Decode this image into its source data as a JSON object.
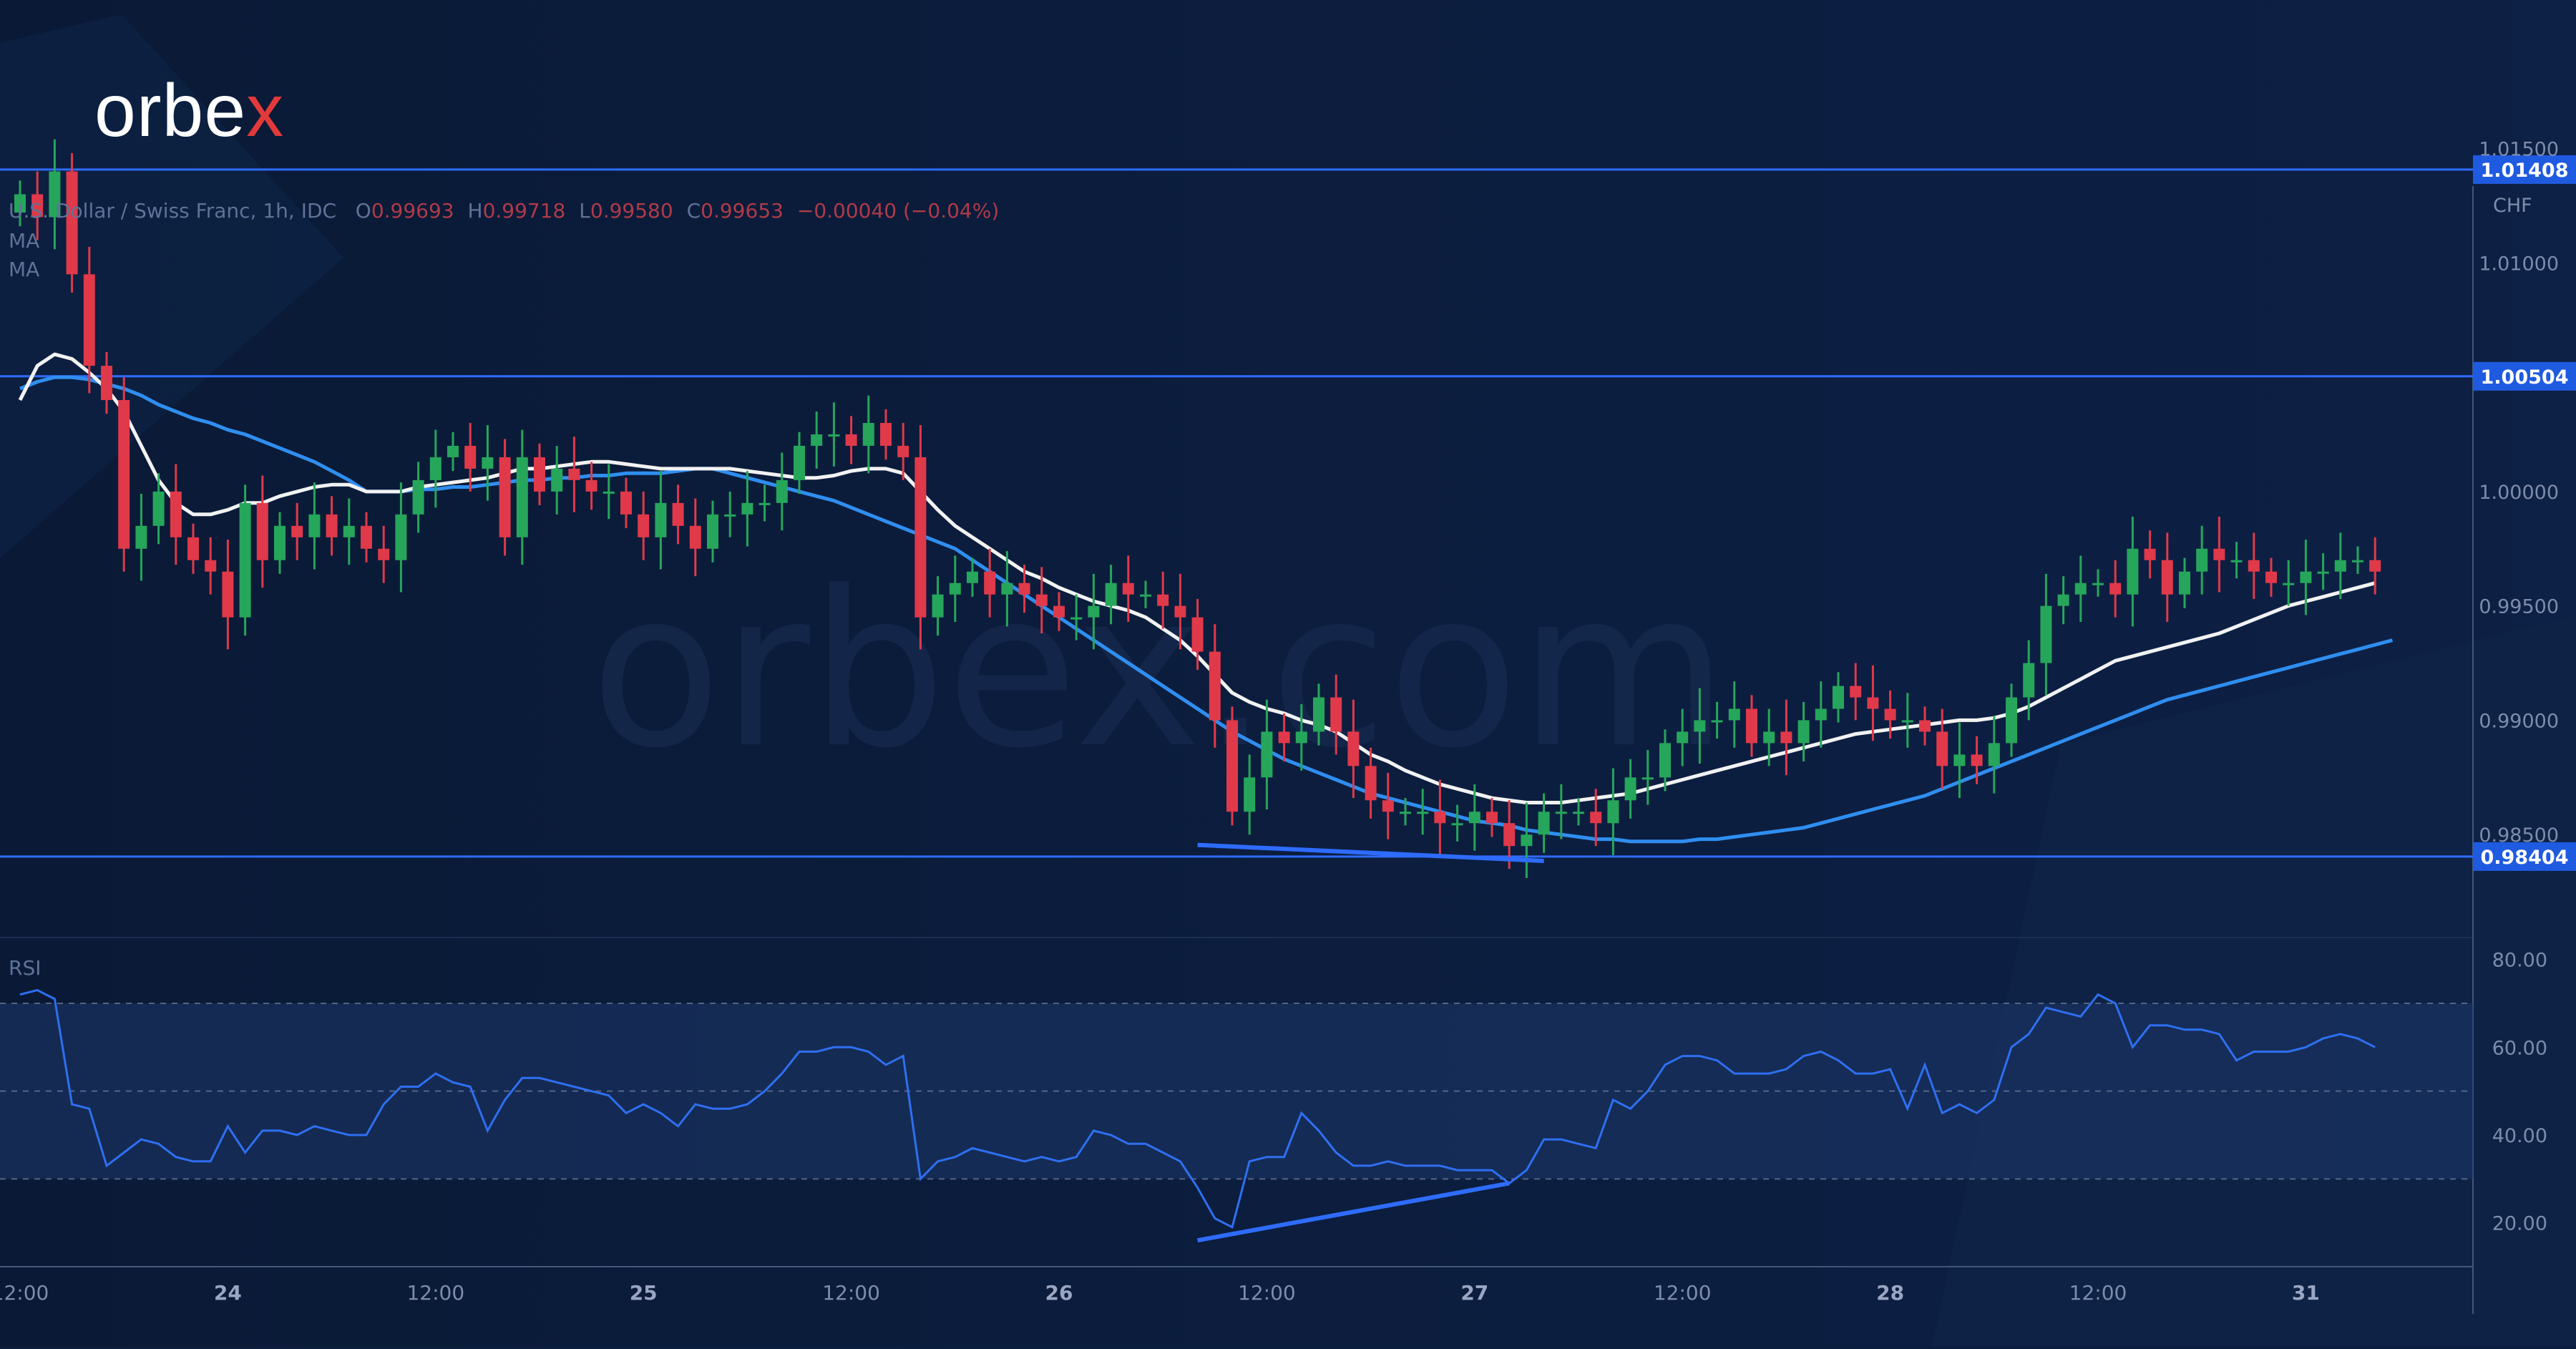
{
  "brand": {
    "logo_text": "orbe",
    "logo_x": "x",
    "watermark": "orbex.com"
  },
  "header": {
    "symbol": "U.S. Dollar / Swiss Franc, 1h, IDC",
    "open_label": "O",
    "open": "0.99693",
    "high_label": "H",
    "high": "0.99718",
    "low_label": "L",
    "low": "0.99580",
    "close_label": "C",
    "close": "0.99653",
    "change": "−0.00040 (−0.04%)",
    "ma1_label": "MA",
    "ma2_label": "MA",
    "rsi_label": "RSI"
  },
  "colors": {
    "background": "#0c1e3d",
    "up": "#26a65b",
    "down": "#e0394a",
    "level_line": "#2e6cff",
    "ma_fast": "#f2f2f2",
    "ma_slow": "#2f8ef0",
    "rsi_line": "#2f6ff0",
    "rsi_band": "#1b3566",
    "axis_text": "#7e8cab"
  },
  "chart_data": [
    {
      "type": "candlestick",
      "pane": "price",
      "currency_label": "CHF",
      "ylim": [
        0.9805,
        1.0168
      ],
      "y_ticks": [
        "1.01500",
        "1.01000",
        "1.00000",
        "0.99500",
        "0.99000",
        "0.98500"
      ],
      "horizontal_levels": [
        {
          "value": 1.01408,
          "label": "1.01408"
        },
        {
          "value": 1.00504,
          "label": "1.00504"
        },
        {
          "value": 0.98404,
          "label": "0.98404"
        }
      ],
      "x_labels": [
        {
          "bar": 0,
          "label": "12:00"
        },
        {
          "bar": 12,
          "label": "24"
        },
        {
          "bar": 24,
          "label": "12:00"
        },
        {
          "bar": 36,
          "label": "25"
        },
        {
          "bar": 48,
          "label": "12:00"
        },
        {
          "bar": 60,
          "label": "26"
        },
        {
          "bar": 72,
          "label": "12:00"
        },
        {
          "bar": 84,
          "label": "27"
        },
        {
          "bar": 96,
          "label": "12:00"
        },
        {
          "bar": 108,
          "label": "28"
        },
        {
          "bar": 120,
          "label": "12:00"
        },
        {
          "bar": 132,
          "label": "31"
        }
      ],
      "closes": [
        1.013,
        1.012,
        1.014,
        1.0095,
        1.0055,
        1.004,
        0.9975,
        0.9985,
        1.0,
        0.998,
        0.997,
        0.9965,
        0.9945,
        0.9995,
        0.997,
        0.9985,
        0.998,
        0.999,
        0.998,
        0.9985,
        0.9975,
        0.997,
        0.999,
        1.0005,
        1.0015,
        1.002,
        1.001,
        1.0015,
        0.998,
        1.0015,
        1.0,
        1.001,
        1.0005,
        1.0,
        1.0,
        0.999,
        0.998,
        0.9995,
        0.9985,
        0.9975,
        0.999,
        0.999,
        0.9995,
        0.9995,
        1.0005,
        1.002,
        1.0025,
        1.0025,
        1.002,
        1.003,
        1.002,
        1.0015,
        0.9945,
        0.9955,
        0.996,
        0.9965,
        0.9955,
        0.996,
        0.9955,
        0.995,
        0.9945,
        0.9945,
        0.995,
        0.996,
        0.9955,
        0.9955,
        0.995,
        0.9945,
        0.993,
        0.99,
        0.986,
        0.9875,
        0.9895,
        0.989,
        0.9895,
        0.991,
        0.9895,
        0.988,
        0.9865,
        0.986,
        0.986,
        0.986,
        0.9855,
        0.9855,
        0.986,
        0.9855,
        0.9845,
        0.985,
        0.986,
        0.986,
        0.986,
        0.9855,
        0.9865,
        0.9875,
        0.9875,
        0.989,
        0.9895,
        0.99,
        0.99,
        0.9905,
        0.989,
        0.9895,
        0.989,
        0.99,
        0.9905,
        0.9915,
        0.991,
        0.9905,
        0.99,
        0.99,
        0.9895,
        0.988,
        0.9885,
        0.988,
        0.989,
        0.991,
        0.9925,
        0.995,
        0.9955,
        0.996,
        0.996,
        0.9955,
        0.9975,
        0.997,
        0.9955,
        0.9965,
        0.9975,
        0.997,
        0.997,
        0.9965,
        0.996,
        0.996,
        0.9965,
        0.9965,
        0.997,
        0.997,
        0.9965
      ],
      "ma_fast": [
        1.004,
        1.0055,
        1.006,
        1.0058,
        1.0052,
        1.0045,
        1.0035,
        1.002,
        1.0005,
        0.9995,
        0.999,
        0.999,
        0.9992,
        0.9995,
        0.9995,
        0.9998,
        1.0,
        1.0002,
        1.0003,
        1.0003,
        1.0,
        1.0,
        1.0,
        1.0002,
        1.0003,
        1.0004,
        1.0005,
        1.0006,
        1.0008,
        1.001,
        1.001,
        1.0011,
        1.0012,
        1.0013,
        1.0013,
        1.0012,
        1.0011,
        1.001,
        1.001,
        1.001,
        1.001,
        1.001,
        1.0009,
        1.0008,
        1.0007,
        1.0006,
        1.0006,
        1.0007,
        1.0009,
        1.001,
        1.001,
        1.0008,
        1.0,
        0.9992,
        0.9985,
        0.998,
        0.9975,
        0.997,
        0.9965,
        0.9962,
        0.9958,
        0.9955,
        0.9952,
        0.995,
        0.9948,
        0.9945,
        0.994,
        0.9935,
        0.9928,
        0.992,
        0.9912,
        0.9908,
        0.9905,
        0.9903,
        0.99,
        0.9898,
        0.9895,
        0.989,
        0.9885,
        0.9882,
        0.9878,
        0.9875,
        0.9872,
        0.987,
        0.9868,
        0.9866,
        0.9865,
        0.9864,
        0.9864,
        0.9864,
        0.9865,
        0.9866,
        0.9867,
        0.9868,
        0.987,
        0.9872,
        0.9874,
        0.9876,
        0.9878,
        0.988,
        0.9882,
        0.9884,
        0.9886,
        0.9888,
        0.989,
        0.9892,
        0.9894,
        0.9895,
        0.9896,
        0.9897,
        0.9898,
        0.9899,
        0.99,
        0.99,
        0.9901,
        0.9903,
        0.9906,
        0.991,
        0.9914,
        0.9918,
        0.9922,
        0.9926,
        0.9928,
        0.993,
        0.9932,
        0.9934,
        0.9936,
        0.9938,
        0.9941,
        0.9944,
        0.9947,
        0.995,
        0.9952,
        0.9954,
        0.9956,
        0.9958,
        0.996
      ],
      "ma_slow": [
        1.0045,
        1.0048,
        1.005,
        1.005,
        1.0049,
        1.0047,
        1.0045,
        1.0042,
        1.0038,
        1.0035,
        1.0032,
        1.003,
        1.0027,
        1.0025,
        1.0022,
        1.0019,
        1.0016,
        1.0013,
        1.0009,
        1.0005,
        1.0,
        1.0,
        1.0,
        1.0001,
        1.0001,
        1.0002,
        1.0002,
        1.0003,
        1.0004,
        1.0005,
        1.0005,
        1.0006,
        1.0006,
        1.0007,
        1.0007,
        1.0008,
        1.0008,
        1.0008,
        1.0009,
        1.001,
        1.001,
        1.0008,
        1.0006,
        1.0004,
        1.0002,
        1.0,
        0.9998,
        0.9996,
        0.9993,
        0.999,
        0.9987,
        0.9984,
        0.9981,
        0.9978,
        0.9975,
        0.997,
        0.9965,
        0.996,
        0.9955,
        0.995,
        0.9945,
        0.994,
        0.9935,
        0.993,
        0.9925,
        0.992,
        0.9915,
        0.991,
        0.9905,
        0.99,
        0.9895,
        0.9891,
        0.9887,
        0.9883,
        0.988,
        0.9877,
        0.9874,
        0.9871,
        0.9868,
        0.9866,
        0.9864,
        0.9862,
        0.986,
        0.9858,
        0.9856,
        0.9855,
        0.9854,
        0.9852,
        0.9851,
        0.985,
        0.9849,
        0.9848,
        0.9848,
        0.9847,
        0.9847,
        0.9847,
        0.9847,
        0.9848,
        0.9848,
        0.9849,
        0.985,
        0.9851,
        0.9852,
        0.9853,
        0.9855,
        0.9857,
        0.9859,
        0.9861,
        0.9863,
        0.9865,
        0.9867,
        0.987,
        0.9873,
        0.9876,
        0.9879,
        0.9882,
        0.9885,
        0.9888,
        0.9891,
        0.9894,
        0.9897,
        0.99,
        0.9903,
        0.9906,
        0.9909,
        0.9911,
        0.9913,
        0.9915,
        0.9917,
        0.9919,
        0.9921,
        0.9923,
        0.9925,
        0.9927,
        0.9929,
        0.9931,
        0.9933,
        0.9935
      ]
    },
    {
      "type": "line",
      "pane": "rsi",
      "ylim": [
        10,
        85
      ],
      "y_ticks": [
        "80.00",
        "60.00",
        "40.00",
        "20.00"
      ],
      "levels": [
        70,
        50,
        30
      ],
      "band": [
        30,
        70
      ],
      "values": [
        72,
        73,
        71,
        47,
        46,
        33,
        36,
        39,
        38,
        35,
        34,
        34,
        42,
        36,
        41,
        41,
        40,
        42,
        41,
        40,
        40,
        47,
        51,
        51,
        54,
        52,
        51,
        41,
        48,
        53,
        53,
        52,
        51,
        50,
        49,
        45,
        47,
        45,
        42,
        47,
        46,
        46,
        47,
        50,
        54,
        59,
        59,
        60,
        60,
        59,
        56,
        58,
        30,
        34,
        35,
        37,
        36,
        35,
        34,
        35,
        34,
        35,
        41,
        40,
        38,
        38,
        36,
        34,
        28,
        21,
        19,
        34,
        35,
        35,
        45,
        41,
        36,
        33,
        33,
        34,
        33,
        33,
        33,
        32,
        32,
        32,
        29,
        32,
        39,
        39,
        38,
        37,
        48,
        46,
        50,
        56,
        58,
        58,
        57,
        54,
        54,
        54,
        55,
        58,
        59,
        57,
        54,
        54,
        55,
        46,
        56,
        45,
        47,
        45,
        48,
        60,
        63,
        69,
        68,
        67,
        72,
        70,
        60,
        65,
        65,
        64,
        64,
        63,
        57,
        59,
        59,
        59,
        60,
        62,
        63,
        62,
        60
      ],
      "trendline_start": {
        "bar": 68,
        "value": 16
      },
      "trendline_end": {
        "bar": 86,
        "value": 29
      }
    }
  ],
  "price_trendline": {
    "start": {
      "bar": 68,
      "value": 0.98455
    },
    "end": {
      "bar": 88,
      "value": 0.98385
    }
  }
}
